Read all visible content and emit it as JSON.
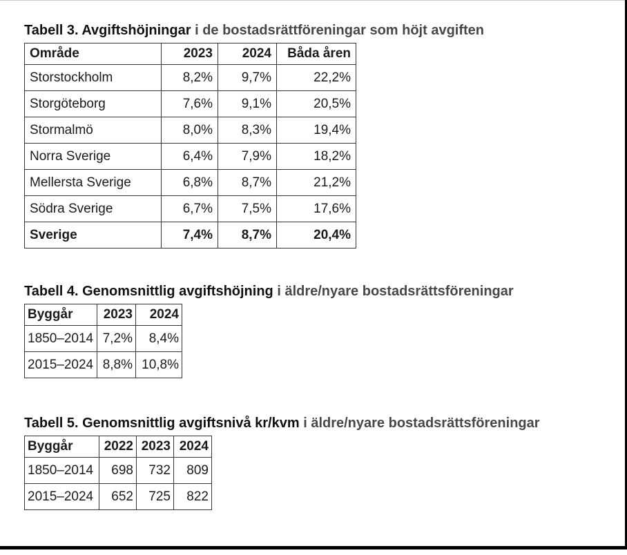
{
  "frame": {
    "border_color": "#000000",
    "background": "#ffffff"
  },
  "tables": [
    {
      "title_strong": "Tabell 3. Avgiftshöjningar",
      "title_rest": "i de bostadsrättföreningar som höjt avgiften",
      "columns": [
        "Område",
        "2023",
        "2024",
        "Båda åren"
      ],
      "rows": [
        {
          "label": "Storstockholm",
          "values": [
            "8,2%",
            "9,7%",
            "22,2%"
          ],
          "bold": false
        },
        {
          "label": "Storgöteborg",
          "values": [
            "7,6%",
            "9,1%",
            "20,5%"
          ],
          "bold": false
        },
        {
          "label": "Stormalmö",
          "values": [
            "8,0%",
            "8,3%",
            "19,4%"
          ],
          "bold": false
        },
        {
          "label": "Norra Sverige",
          "values": [
            "6,4%",
            "7,9%",
            "18,2%"
          ],
          "bold": false
        },
        {
          "label": "Mellersta Sverige",
          "values": [
            "6,8%",
            "8,7%",
            "21,2%"
          ],
          "bold": false
        },
        {
          "label": "Södra Sverige",
          "values": [
            "6,7%",
            "7,5%",
            "17,6%"
          ],
          "bold": false
        },
        {
          "label": "Sverige",
          "values": [
            "7,4%",
            "8,7%",
            "20,4%"
          ],
          "bold": true
        }
      ]
    },
    {
      "title_strong": "Tabell 4. Genomsnittlig avgiftshöjning",
      "title_rest": "i äldre/nyare bostadsrättsföreningar",
      "columns": [
        "Byggår",
        "2023",
        "2024"
      ],
      "rows": [
        {
          "label": "1850–2014",
          "values": [
            "7,2%",
            "8,4%"
          ],
          "bold": false
        },
        {
          "label": "2015–2024",
          "values": [
            "8,8%",
            "10,8%"
          ],
          "bold": false
        }
      ]
    },
    {
      "title_strong": "Tabell 5. Genomsnittlig avgiftsnivå kr/kvm",
      "title_rest": "i äldre/nyare bostadsrättsföreningar",
      "columns": [
        "Byggår",
        "2022",
        "2023",
        "2024"
      ],
      "rows": [
        {
          "label": "1850–2014",
          "values": [
            "698",
            "732",
            "809"
          ],
          "bold": false
        },
        {
          "label": "2015–2024",
          "values": [
            "652",
            "725",
            "822"
          ],
          "bold": false
        }
      ]
    }
  ]
}
